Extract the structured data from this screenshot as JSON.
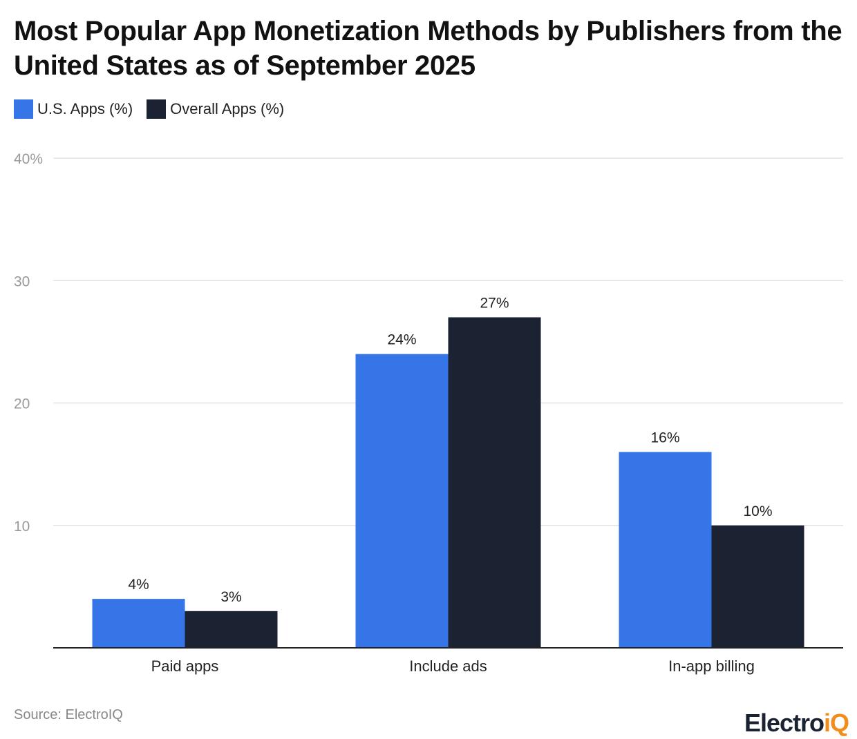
{
  "chart_data": {
    "type": "bar",
    "title": "Most Popular App Monetization Methods by Publishers from the United States as of September 2025",
    "categories": [
      "Paid apps",
      "Include ads",
      "In-app billing"
    ],
    "series": [
      {
        "name": "U.S. Apps (%)",
        "values": [
          4,
          24,
          16
        ],
        "labels": [
          "4%",
          "24%",
          "16%"
        ],
        "color": "#3575e8"
      },
      {
        "name": "Overall Apps (%)",
        "values": [
          3,
          27,
          10
        ],
        "labels": [
          "3%",
          "27%",
          "10%"
        ],
        "color": "#1b2232"
      }
    ],
    "ylim": [
      0,
      40
    ],
    "yticks": [
      "",
      "10",
      "20",
      "30",
      "40%"
    ],
    "grid": true,
    "legend": "top-left",
    "xlabel": "",
    "ylabel": ""
  },
  "source": "Source: ElectroIQ",
  "logo": {
    "text_main": "Electro",
    "text_accent": "iQ",
    "accent_color": "#f28c1a"
  }
}
